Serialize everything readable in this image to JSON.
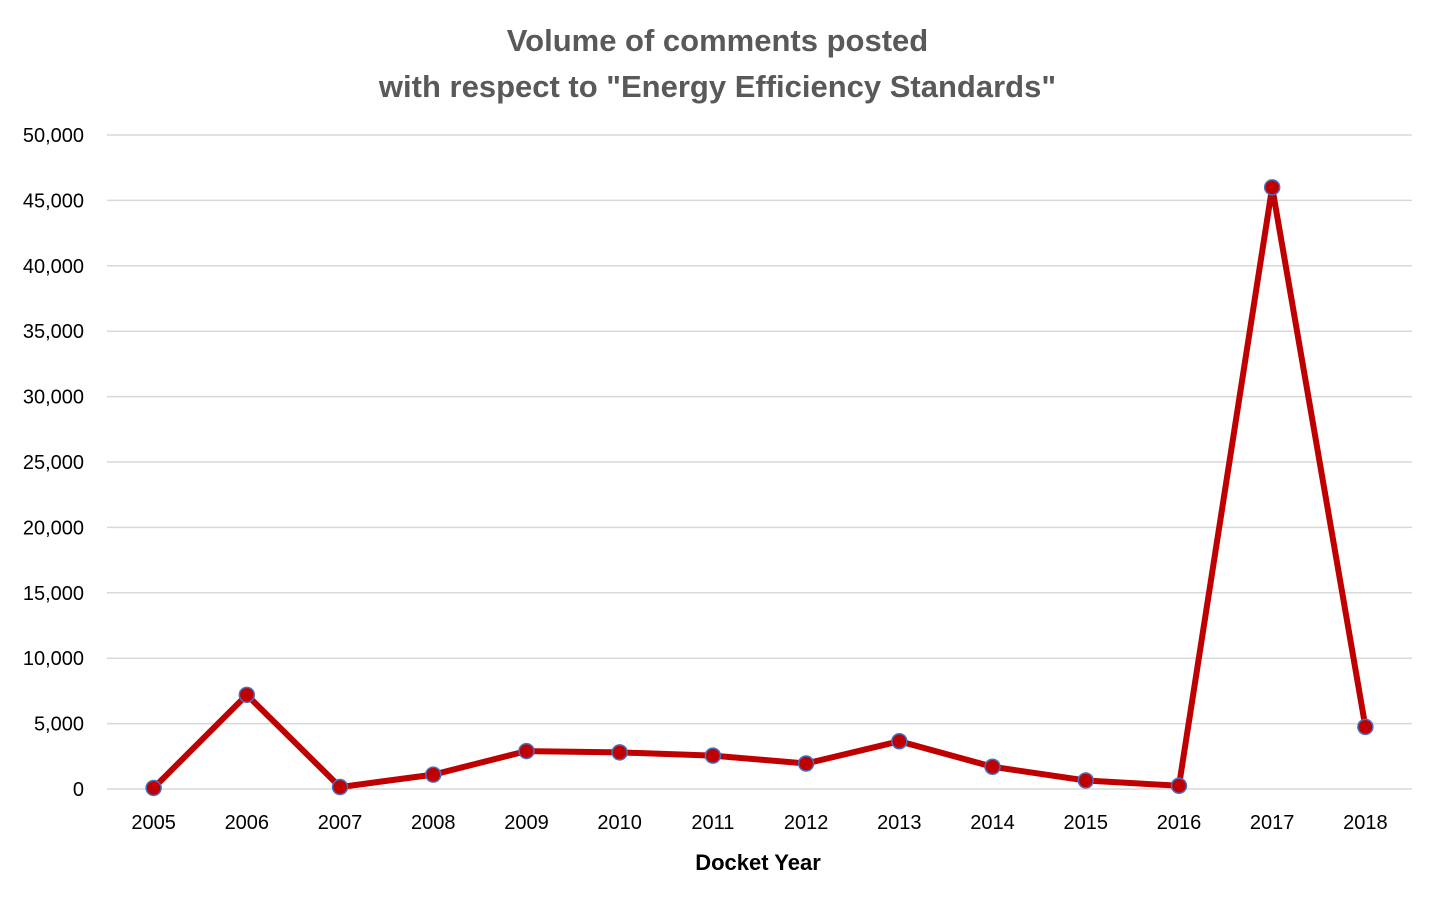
{
  "chart_data": {
    "type": "line",
    "title_lines": [
      "Volume of comments posted",
      "with respect to \"Energy Efficiency Standards\""
    ],
    "xlabel": "Docket Year",
    "ylabel": "",
    "categories": [
      "2005",
      "2006",
      "2007",
      "2008",
      "2009",
      "2010",
      "2011",
      "2012",
      "2013",
      "2014",
      "2015",
      "2016",
      "2017",
      "2018"
    ],
    "series": [
      {
        "values": [
          80,
          7200,
          150,
          1100,
          2900,
          2800,
          2550,
          1950,
          3650,
          1700,
          650,
          250,
          46000,
          4750
        ]
      }
    ],
    "ylim": [
      0,
      50000
    ],
    "yticks": [
      0,
      5000,
      10000,
      15000,
      20000,
      25000,
      30000,
      35000,
      40000,
      45000,
      50000
    ],
    "ytick_labels": [
      "0",
      "5,000",
      "10,000",
      "15,000",
      "20,000",
      "25,000",
      "30,000",
      "35,000",
      "40,000",
      "45,000",
      "50,000"
    ],
    "grid": true,
    "colors": {
      "line": "#C00000",
      "marker_fill": "#C00000",
      "marker_edge": "#4472C4",
      "grid": "#D9D9D9",
      "title": "#595959"
    }
  }
}
